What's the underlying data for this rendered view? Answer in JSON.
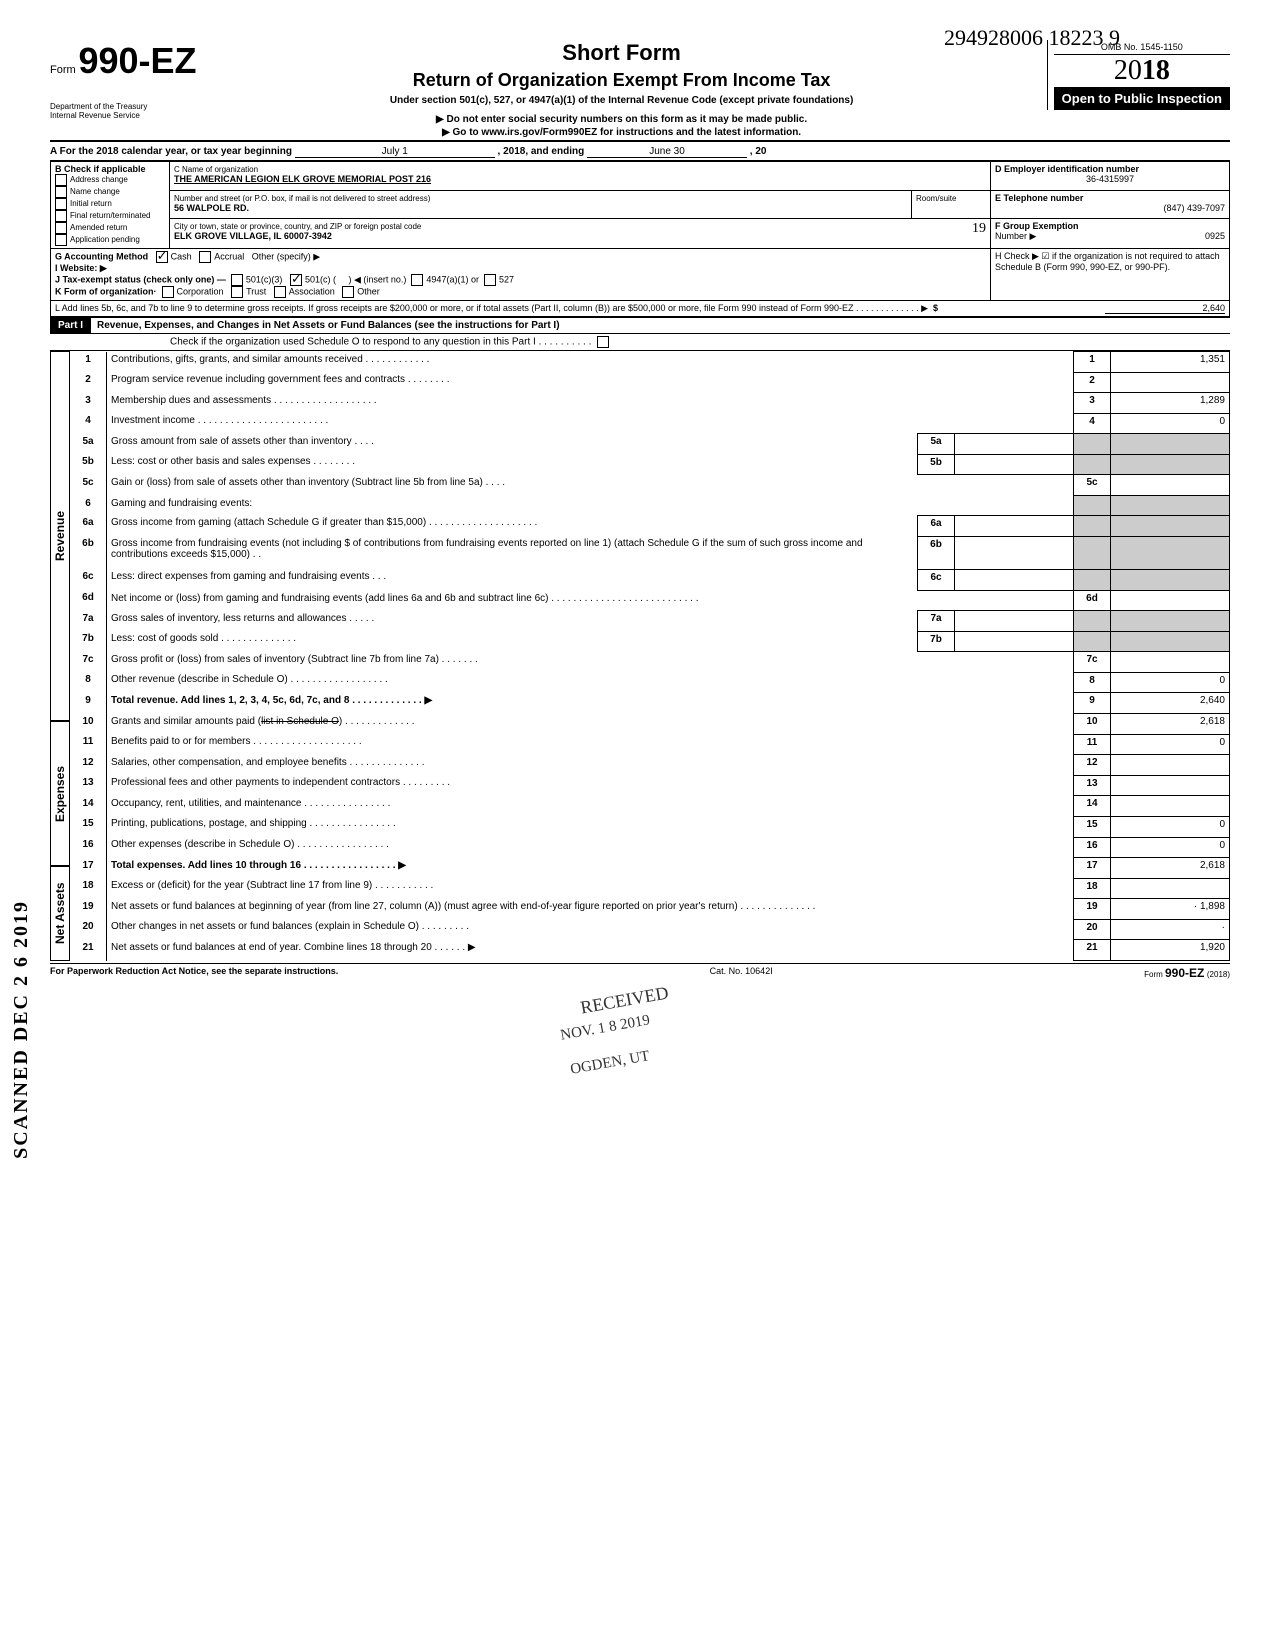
{
  "topright_hand": "294928006 18223  9",
  "omb": "OMB No. 1545-1150",
  "form_prefix": "Form",
  "form_number": "990-EZ",
  "dept1": "Department of the Treasury",
  "dept2": "Internal Revenue Service",
  "short_form": "Short Form",
  "main_title": "Return of Organization Exempt From Income Tax",
  "subtitle": "Under section 501(c), 527, or 4947(a)(1) of the Internal Revenue Code (except private foundations)",
  "arrow1": "▶ Do not enter social security numbers on this form as it may be made public.",
  "arrow2": "▶ Go to www.irs.gov/Form990EZ for instructions and the latest information.",
  "year_outline": "20",
  "year_bold": "18",
  "open_public": "Open to Public Inspection",
  "lineA": {
    "prefix": "A For the 2018 calendar year, or tax year beginning",
    "begin": "July 1",
    "mid": ", 2018, and ending",
    "end": "June 30",
    "tail": ", 20"
  },
  "B_label": "B Check if applicable",
  "B_items": [
    "Address change",
    "Name change",
    "Initial return",
    "Final return/terminated",
    "Amended return",
    "Application pending"
  ],
  "C_label": "C Name of organization",
  "org_name": "THE AMERICAN LEGION ELK GROVE MEMORIAL POST 216",
  "addr_label": "Number and street (or P.O. box, if mail is not delivered to street address)",
  "room_label": "Room/suite",
  "street": "56 WALPOLE RD.",
  "city_label": "City or town, state or province, country, and ZIP or foreign postal code",
  "city": "ELK GROVE VILLAGE, IL 60007-3942",
  "year_suffix": "19",
  "D_label": "D Employer identification number",
  "D_val": "36-4315997",
  "E_label": "E Telephone number",
  "E_val": "(847) 439-7097",
  "F_label": "F Group Exemption",
  "F_number_label": "Number ▶",
  "F_val": "0925",
  "G_label": "G Accounting Method",
  "G_cash": "Cash",
  "G_accrual": "Accrual",
  "G_other": "Other (specify) ▶",
  "H_text": "H Check ▶ ☑ if the organization is not required to attach Schedule B (Form 990, 990-EZ, or 990-PF).",
  "I_label": "I Website: ▶",
  "J_label": "J Tax-exempt status (check only one) —",
  "J_a": "501(c)(3)",
  "J_b": "501(c) (",
  "J_insert": ") ◀ (insert no.)",
  "J_c": "4947(a)(1) or",
  "J_d": "527",
  "K_label": "K Form of organization·",
  "K_a": "Corporation",
  "K_b": "Trust",
  "K_c": "Association",
  "K_d": "Other",
  "L_text": "L Add lines 5b, 6c, and 7b to line 9 to determine gross receipts. If gross receipts are $200,000 or more, or if total assets (Part II, column (B)) are $500,000 or more, file Form 990 instead of Form 990-EZ .     .     .     .     .     .     .     .     .     .     .     .     .   ▶",
  "L_amt": "2,640",
  "part1_label": "Part I",
  "part1_title": "Revenue, Expenses, and Changes in Net Assets or Fund Balances (see the instructions for Part I)",
  "part1_check": "Check if the organization used Schedule O to respond to any question in this Part I .   .   .   .   .   .   .   .   .   .",
  "side_rev": "Revenue",
  "side_exp": "Expenses",
  "side_na": "Net Assets",
  "lines": {
    "1": {
      "d": "Contributions, gifts, grants, and similar amounts received .   .   .   .   .   .   .   .   .   .   .   .",
      "a": "1,351"
    },
    "2": {
      "d": "Program service revenue including government fees and contracts   .   .   .   .   .   .   .   .",
      "a": ""
    },
    "3": {
      "d": "Membership dues and assessments .   .   .   .   .   .   .   .   .   .   .   .   .   .   .   .   .   .   .",
      "a": "1,289"
    },
    "4": {
      "d": "Investment income   .   .   .   .   .   .   .   .   .   .   .   .   .   .   .   .   .   .   .   .   .   .   .   .",
      "a": "0"
    },
    "5a": {
      "d": "Gross amount from sale of assets other than inventory   .   .   .   .",
      "box": "5a"
    },
    "5b": {
      "d": "Less: cost or other basis and sales expenses .   .   .   .   .   .   .   .",
      "box": "5b"
    },
    "5c": {
      "d": "Gain or (loss) from sale of assets other than inventory (Subtract line 5b from line 5a) .   .   .   .",
      "a": ""
    },
    "6": {
      "d": "Gaming and fundraising events:"
    },
    "6a": {
      "d": "Gross income from gaming (attach Schedule G if greater than $15,000) .   .   .   .   .   .   .   .   .   .   .   .   .   .   .   .   .   .   .   .",
      "box": "6a"
    },
    "6b": {
      "d": "Gross income from fundraising events (not including  $                                 of contributions from fundraising events reported on line 1) (attach Schedule G if the sum of such gross income and contributions exceeds $15,000) .   .",
      "box": "6b"
    },
    "6c": {
      "d": "Less: direct expenses from gaming and fundraising events   .   .   .",
      "box": "6c"
    },
    "6d": {
      "d": "Net income or (loss) from gaming and fundraising events (add lines 6a and 6b and subtract line 6c)   .   .   .   .   .   .   .   .   .   .   .   .   .   .   .   .   .   .   .   .   .   .   .   .   .   .   .",
      "a": ""
    },
    "7a": {
      "d": "Gross sales of inventory, less returns and allowances .   .   .   .   .",
      "box": "7a"
    },
    "7b": {
      "d": "Less: cost of goods sold     .   .   .   .   .   .   .   .   .   .   .   .   .   .",
      "box": "7b"
    },
    "7c": {
      "d": "Gross profit or (loss) from sales of inventory (Subtract line 7b from line 7a) .   .   .   .   .   .   .",
      "a": ""
    },
    "8": {
      "d": "Other revenue (describe in Schedule O) .   .   .   .   .   .   .   .   .   .   .   .   .   .   .   .   .   .",
      "a": "0"
    },
    "9": {
      "d": "Total revenue. Add lines 1, 2, 3, 4, 5c, 6d, 7c, and 8   .   .   .   .   .   .   .   .   .   .   .   .   .  ▶",
      "a": "2,640",
      "bold": true
    },
    "10": {
      "d": "Grants and similar amounts paid (list in Schedule O)   .   .   .   .   .   .   .   .   .   .   .   .   .",
      "a": "2,618",
      "strike": "list in Schedule O"
    },
    "11": {
      "d": "Benefits paid to or for members   .   .   .   .   .   .   .   .   .   .   .   .   .   .   .   .   .   .   .   .",
      "a": "0"
    },
    "12": {
      "d": "Salaries, other compensation, and employee benefits .   .   .   .   .   .   .   .   .   .   .   .   .   .",
      "a": ""
    },
    "13": {
      "d": "Professional fees and other payments to independent contractors   .   .   .   .   .   .   .   .   .",
      "a": ""
    },
    "14": {
      "d": "Occupancy, rent, utilities, and maintenance   .   .   .   .   .   .   .   .   .   .   .   .   .   .   .   .",
      "a": ""
    },
    "15": {
      "d": "Printing, publications, postage, and shipping .   .   .   .   .   .   .   .   .   .   .   .   .   .   .   .",
      "a": "0"
    },
    "16": {
      "d": "Other expenses (describe in Schedule O) .   .   .   .   .   .   .   .   .   .   .   .   .   .   .   .   .",
      "a": "0"
    },
    "17": {
      "d": "Total expenses. Add lines 10 through 16 .   .   .   .   .   .   .   .   .   .   .   .   .   .   .   .   .  ▶",
      "a": "2,618",
      "bold": true
    },
    "18": {
      "d": "Excess or (deficit) for the year (Subtract line 17 from line 9)   .   .   .   .   .   .   .   .   .   .   .",
      "a": ""
    },
    "19": {
      "d": "Net assets or fund balances at beginning of year (from line 27, column (A)) (must agree with end-of-year figure reported on prior year's return)   .   .   .   .   .   .   .   .   .   .   .   .   .   .",
      "a": "· 1,898"
    },
    "20": {
      "d": "Other changes in net assets or fund balances (explain in Schedule O) .   .   .   .   .   .   .   .   .",
      "a": "·"
    },
    "21": {
      "d": "Net assets or fund balances at end of year. Combine lines 18 through 20   .   .   .   .   .   .  ▶",
      "a": "1,920"
    }
  },
  "footer_l": "For Paperwork Reduction Act Notice, see the separate instructions.",
  "footer_c": "Cat. No. 10642I",
  "footer_r": "Form 990-EZ (2018)",
  "scanned": "SCANNED DEC 2 6 2019",
  "stamp1": "RECEIVED",
  "stamp2": "NOV. 1 8 2019",
  "stamp3": "OGDEN, UT"
}
